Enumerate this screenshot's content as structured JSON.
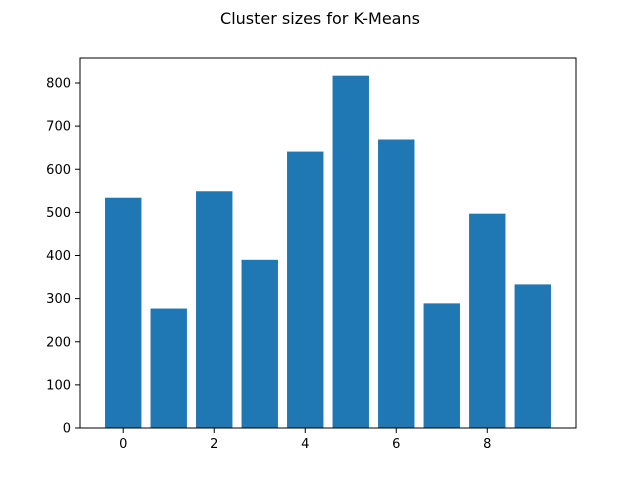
{
  "chart_data": {
    "type": "bar",
    "title": "Cluster sizes for K-Means",
    "xlabel": "",
    "ylabel": "",
    "categories": [
      0,
      1,
      2,
      3,
      4,
      5,
      6,
      7,
      8,
      9
    ],
    "values": [
      534,
      277,
      549,
      390,
      641,
      817,
      669,
      289,
      497,
      333
    ],
    "xlim": [
      -0.95,
      9.95
    ],
    "ylim": [
      0,
      858
    ],
    "x_ticks": [
      0,
      2,
      4,
      6,
      8
    ],
    "y_ticks": [
      0,
      100,
      200,
      300,
      400,
      500,
      600,
      700,
      800
    ],
    "bar_width": 0.8,
    "bar_color": "#1f77b4",
    "grid": false,
    "legend": "none"
  }
}
